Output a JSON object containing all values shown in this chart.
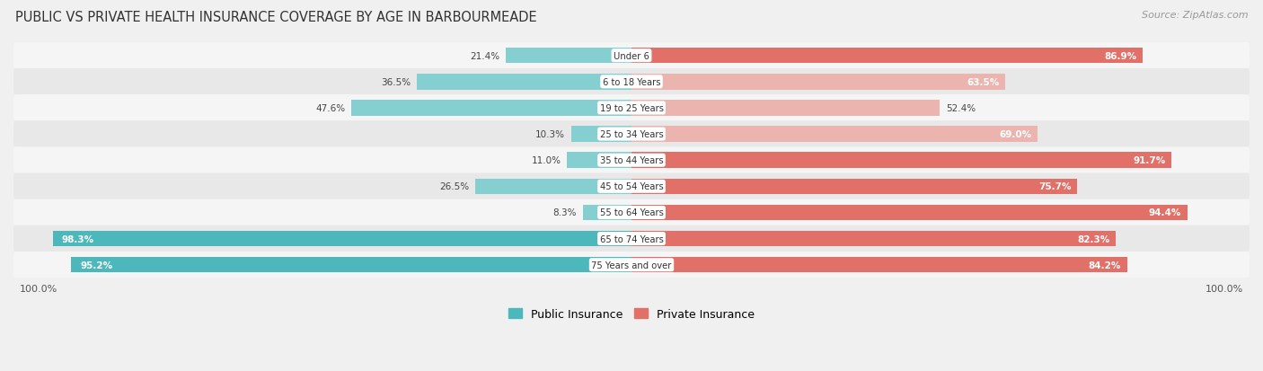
{
  "title": "PUBLIC VS PRIVATE HEALTH INSURANCE COVERAGE BY AGE IN BARBOURMEADE",
  "source": "Source: ZipAtlas.com",
  "categories": [
    "Under 6",
    "6 to 18 Years",
    "19 to 25 Years",
    "25 to 34 Years",
    "35 to 44 Years",
    "45 to 54 Years",
    "55 to 64 Years",
    "65 to 74 Years",
    "75 Years and over"
  ],
  "public": [
    21.4,
    36.5,
    47.6,
    10.3,
    11.0,
    26.5,
    8.3,
    98.3,
    95.2
  ],
  "private": [
    86.9,
    63.5,
    52.4,
    69.0,
    91.7,
    75.7,
    94.4,
    82.3,
    84.2
  ],
  "public_color_full": "#4db8bc",
  "public_color_light": "#85cfd1",
  "private_color_full": "#e07068",
  "private_color_light": "#ebb4ae",
  "bg_row_even": "#f5f5f5",
  "bg_row_odd": "#e8e8e8",
  "label_color_dark": "#444444",
  "label_color_white": "#ffffff",
  "title_color": "#333333",
  "source_color": "#999999",
  "max_value": 100.0,
  "legend_public": "Public Insurance",
  "legend_private": "Private Insurance",
  "pub_threshold_full": 50.0,
  "priv_threshold_full": 75.0
}
